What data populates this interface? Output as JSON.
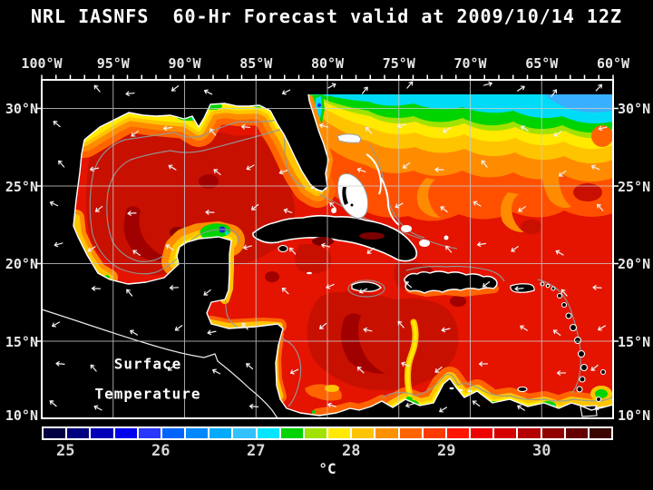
{
  "title": "NRL IASNFS  60-Hr Forecast valid at 2009/10/14 12Z",
  "map_overlay": {
    "line1": "Surface",
    "line2": "Temperature"
  },
  "axes": {
    "lon_labels": [
      "100°W",
      "95°W",
      "90°W",
      "85°W",
      "80°W",
      "75°W",
      "70°W",
      "65°W",
      "60°W"
    ],
    "lat_labels": [
      "30°N",
      "25°N",
      "20°N",
      "15°N",
      "10°N"
    ]
  },
  "colorbar": {
    "unit": "°C",
    "tick_labels": [
      "25",
      "26",
      "27",
      "28",
      "29",
      "30"
    ],
    "value_range_c": [
      24.75,
      30.75
    ],
    "step_c": 0.25,
    "segment_colors": [
      "#000042",
      "#00007e",
      "#0000b6",
      "#0000f0",
      "#2a38ff",
      "#0064ff",
      "#0088ff",
      "#00aaff",
      "#33c2ff",
      "#00e6ff",
      "#00d400",
      "#a2e200",
      "#ffea00",
      "#ffc400",
      "#ff9000",
      "#ff6400",
      "#ff3a00",
      "#ff1600",
      "#ee0000",
      "#d40000",
      "#b40000",
      "#900000",
      "#640000",
      "#3a0400"
    ]
  },
  "field_colors": {
    "base_red": "#e41400",
    "warm_dark_red": "#c81000",
    "warm_maroon": "#a00000",
    "cool_cyan": "#00dcf8",
    "cool_green": "#00d000",
    "land": "#000000",
    "coastline": "#ffffff",
    "bathymetry_contour": "#8f9c9c"
  }
}
